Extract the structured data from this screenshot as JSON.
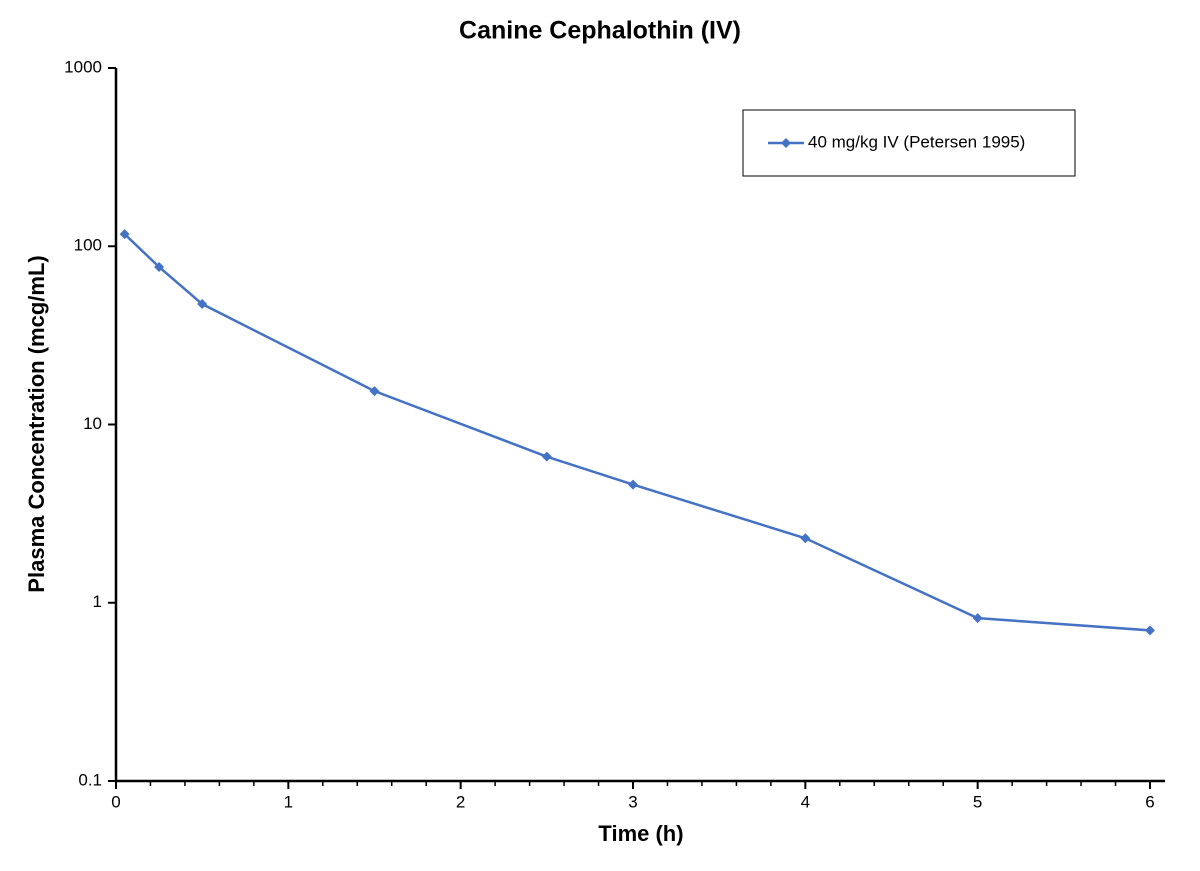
{
  "chart_data": {
    "type": "line",
    "title": "Canine Cephalothin (IV)",
    "x_label": "Time (h)",
    "y_label": "Plasma Concentration (mcg/mL)",
    "x": [
      0.05,
      0.25,
      0.5,
      1.5,
      2.5,
      3,
      4,
      5,
      6
    ],
    "series": [
      {
        "name": "40 mg/kg IV (Petersen 1995)",
        "color": "#4472c4",
        "values": [
          117,
          76.5,
          47.4,
          15.4,
          6.6,
          4.6,
          2.3,
          0.82,
          0.7
        ]
      }
    ],
    "xlim": [
      0,
      6
    ],
    "xticks": [
      0,
      1,
      2,
      3,
      4,
      5,
      6
    ],
    "ylim": [
      0.1,
      1000
    ],
    "yticks": [
      0.1,
      1,
      10,
      100,
      1000
    ],
    "y_scale": "log",
    "grid": false,
    "legend": "upper right"
  }
}
